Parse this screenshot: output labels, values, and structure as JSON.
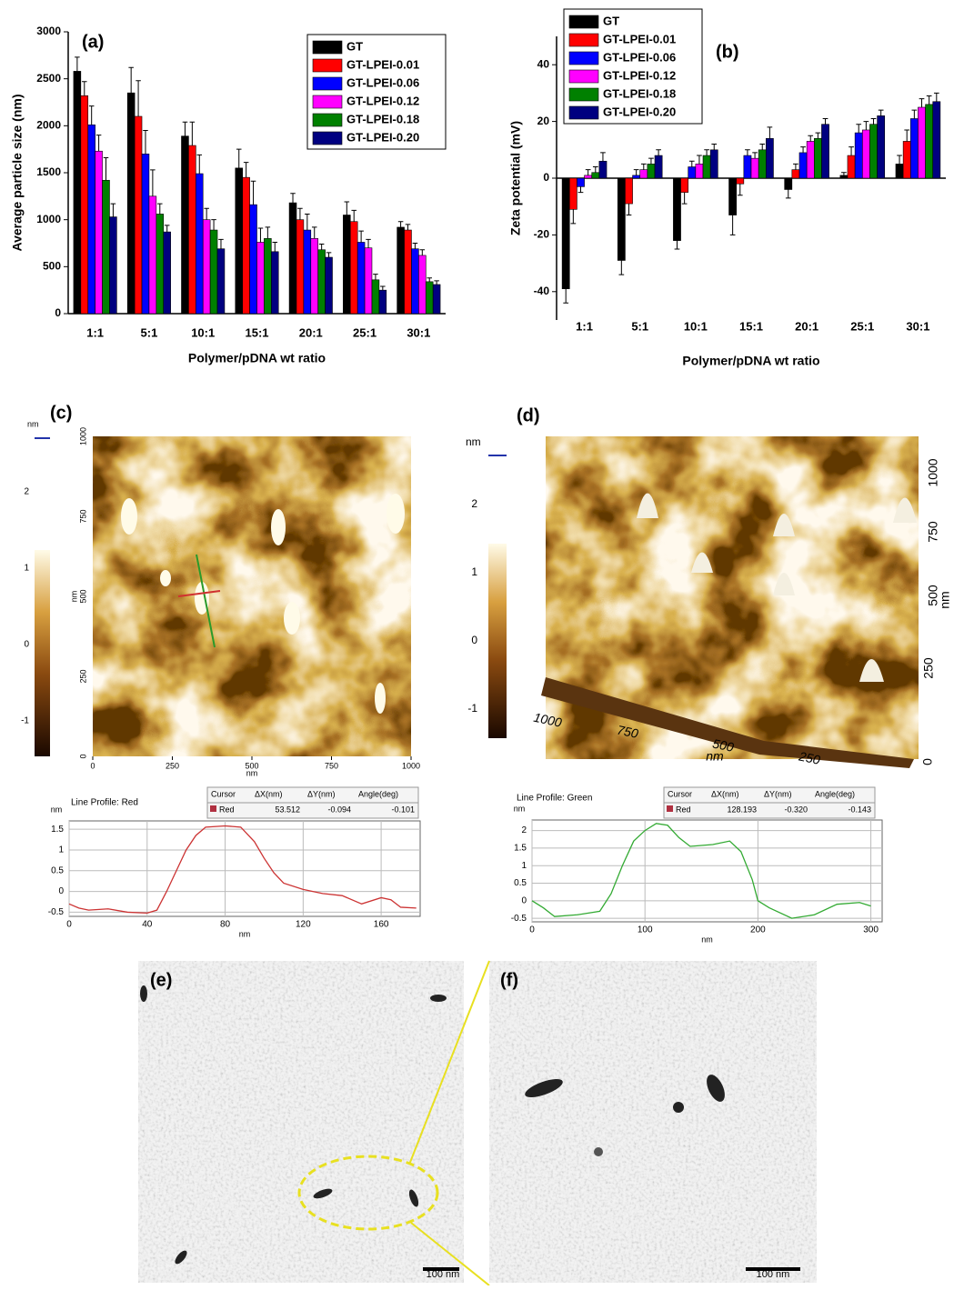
{
  "chart_data": [
    {
      "type": "bar",
      "title": "(a)",
      "xlabel": "Polymer/pDNA wt ratio",
      "ylabel": "Average particle size (nm)",
      "categories": [
        "1:1",
        "5:1",
        "10:1",
        "15:1",
        "20:1",
        "25:1",
        "30:1"
      ],
      "ylim": [
        0,
        3000
      ],
      "yticks": [
        0,
        500,
        1000,
        1500,
        2000,
        2500,
        3000
      ],
      "legend": "upper right",
      "series": [
        {
          "name": "GT",
          "color": "#000000",
          "values": [
            2580,
            2350,
            1890,
            1550,
            1180,
            1050,
            920
          ],
          "errors": [
            150,
            270,
            150,
            200,
            100,
            140,
            60
          ]
        },
        {
          "name": "GT-LPEI-0.01",
          "color": "#ff0000",
          "values": [
            2320,
            2100,
            1790,
            1450,
            1000,
            980,
            890
          ],
          "errors": [
            150,
            380,
            250,
            160,
            120,
            120,
            60
          ]
        },
        {
          "name": "GT-LPEI-0.06",
          "color": "#0000ff",
          "values": [
            2010,
            1700,
            1490,
            1160,
            890,
            760,
            690
          ],
          "errors": [
            200,
            250,
            200,
            250,
            170,
            120,
            60
          ]
        },
        {
          "name": "GT-LPEI-0.12",
          "color": "#ff00ff",
          "values": [
            1730,
            1250,
            1000,
            760,
            800,
            700,
            620
          ],
          "errors": [
            170,
            280,
            120,
            150,
            120,
            90,
            60
          ]
        },
        {
          "name": "GT-LPEI-0.18",
          "color": "#008000",
          "values": [
            1420,
            1060,
            890,
            800,
            680,
            360,
            340
          ],
          "errors": [
            240,
            110,
            110,
            120,
            60,
            60,
            40
          ]
        },
        {
          "name": "GT-LPEI-0.20",
          "color": "#000080",
          "values": [
            1030,
            870,
            690,
            660,
            600,
            250,
            310
          ],
          "errors": [
            140,
            70,
            100,
            100,
            50,
            40,
            40
          ]
        }
      ]
    },
    {
      "type": "bar",
      "title": "(b)",
      "xlabel": "Polymer/pDNA wt ratio",
      "ylabel": "Zeta potential (mV)",
      "categories": [
        "1:1",
        "5:1",
        "10:1",
        "15:1",
        "20:1",
        "25:1",
        "30:1"
      ],
      "ylim": [
        -50,
        50
      ],
      "yticks": [
        -40,
        -20,
        0,
        20,
        40
      ],
      "legend": "upper left",
      "series": [
        {
          "name": "GT",
          "color": "#000000",
          "values": [
            -39,
            -29,
            -22,
            -13,
            -4,
            1,
            5
          ],
          "errors": [
            5,
            5,
            3,
            7,
            3,
            1,
            3
          ]
        },
        {
          "name": "GT-LPEI-0.01",
          "color": "#ff0000",
          "values": [
            -11,
            -9,
            -5,
            -2,
            3,
            8,
            13
          ],
          "errors": [
            5,
            4,
            4,
            4,
            2,
            3,
            4
          ]
        },
        {
          "name": "GT-LPEI-0.06",
          "color": "#0000ff",
          "values": [
            -3,
            1,
            4,
            8,
            9,
            16,
            21
          ],
          "errors": [
            2,
            2,
            2,
            2,
            2,
            3,
            3
          ]
        },
        {
          "name": "GT-LPEI-0.12",
          "color": "#ff00ff",
          "values": [
            1,
            3,
            5,
            7,
            13,
            17,
            25
          ],
          "errors": [
            2,
            2,
            3,
            2,
            2,
            3,
            3
          ]
        },
        {
          "name": "GT-LPEI-0.18",
          "color": "#008000",
          "values": [
            2,
            5,
            8,
            10,
            14,
            19,
            26
          ],
          "errors": [
            2,
            2,
            2,
            2,
            2,
            2,
            3
          ]
        },
        {
          "name": "GT-LPEI-0.20",
          "color": "#000080",
          "values": [
            6,
            8,
            10,
            14,
            19,
            22,
            27
          ],
          "errors": [
            3,
            2,
            2,
            4,
            2,
            2,
            3
          ]
        }
      ]
    },
    {
      "type": "line",
      "title": "Line Profile: Red",
      "xlabel": "nm",
      "ylabel": "nm",
      "color": "#cc3333",
      "grid": true,
      "xlim": [
        0,
        180
      ],
      "xticks": [
        0,
        40,
        80,
        120,
        160
      ],
      "ylim": [
        -0.6,
        1.7
      ],
      "yticks": [
        -0.5,
        0,
        0.5,
        1,
        1.5
      ],
      "x": [
        0,
        5,
        10,
        20,
        30,
        40,
        45,
        50,
        55,
        60,
        65,
        70,
        80,
        88,
        95,
        100,
        105,
        110,
        120,
        130,
        140,
        150,
        160,
        165,
        170,
        178
      ],
      "values": [
        -0.3,
        -0.4,
        -0.45,
        -0.42,
        -0.5,
        -0.52,
        -0.45,
        0,
        0.5,
        1.0,
        1.35,
        1.55,
        1.58,
        1.55,
        1.2,
        0.8,
        0.45,
        0.2,
        0.05,
        -0.05,
        -0.1,
        -0.3,
        -0.15,
        -0.2,
        -0.38,
        -0.4
      ],
      "table": {
        "header": [
          "Cursor",
          "ΔX(nm)",
          "ΔY(nm)",
          "Angle(deg)"
        ],
        "rows": [
          [
            "Red",
            "53.512",
            "-0.094",
            "-0.101"
          ]
        ]
      }
    },
    {
      "type": "line",
      "title": "Line Profile: Green",
      "xlabel": "nm",
      "ylabel": "nm",
      "color": "#33aa33",
      "grid": true,
      "xlim": [
        0,
        310
      ],
      "xticks": [
        0,
        100,
        200,
        300
      ],
      "ylim": [
        -0.6,
        2.3
      ],
      "yticks": [
        -0.5,
        0,
        0.5,
        1,
        1.5,
        2
      ],
      "x": [
        0,
        10,
        20,
        40,
        60,
        70,
        80,
        90,
        100,
        110,
        120,
        130,
        140,
        160,
        175,
        185,
        195,
        200,
        210,
        230,
        250,
        270,
        290,
        300
      ],
      "values": [
        0,
        -0.2,
        -0.45,
        -0.4,
        -0.3,
        0.2,
        1.0,
        1.7,
        2.0,
        2.2,
        2.15,
        1.8,
        1.55,
        1.6,
        1.7,
        1.4,
        0.6,
        0,
        -0.2,
        -0.5,
        -0.4,
        -0.1,
        -0.05,
        -0.15
      ],
      "table": {
        "header": [
          "Cursor",
          "ΔX(nm)",
          "ΔY(nm)",
          "Angle(deg)"
        ],
        "rows": [
          [
            "Red",
            "128.193",
            "-0.320",
            "-0.143"
          ]
        ]
      }
    }
  ],
  "panels": {
    "c": {
      "label": "(c)",
      "axis_label": "nm",
      "image_lim": [
        0,
        1000
      ],
      "image_ticks": [
        0,
        250,
        500,
        750,
        1000
      ],
      "colorbar_unit": "nm",
      "colorbar_ticks": [
        2,
        1,
        0,
        -1
      ]
    },
    "d": {
      "label": "(d)",
      "axis_label": "nm",
      "right_ticks": [
        1000,
        750,
        500,
        250,
        0
      ],
      "bottom_ticks": [
        1000,
        750,
        500,
        250
      ],
      "colorbar_unit": "nm",
      "colorbar_ticks": [
        2,
        1,
        0,
        -1
      ]
    },
    "e": {
      "label": "(e)",
      "scale_bar": "100 nm"
    },
    "f": {
      "label": "(f)",
      "scale_bar": "100 nm"
    }
  }
}
